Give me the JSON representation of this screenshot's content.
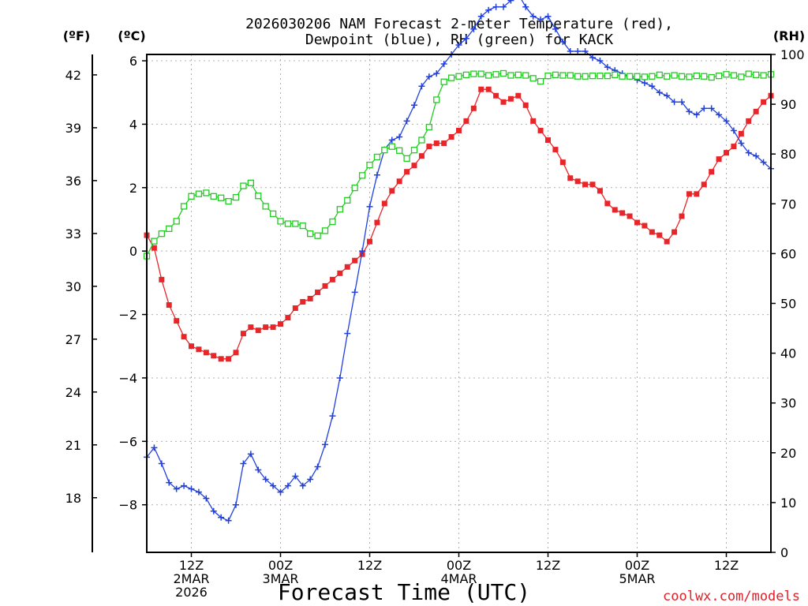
{
  "chart_data": {
    "type": "line",
    "title_line1": "2026030206 NAM Forecast 2-meter Temperature (red),",
    "title_line2": "Dewpoint (blue), RH (green) for KACK",
    "xlabel": "Forecast Time (UTC)",
    "left_unit_f": "(ºF)",
    "left_unit_c": "(ºC)",
    "right_unit": "(RH)",
    "credit": "coolwx.com/models",
    "colors": {
      "temperature": "#e8262a",
      "dewpoint": "#2040e0",
      "rh": "#22cc22"
    },
    "x_unit": "forecast hour from 2026-03-02 06Z",
    "xlim": [
      0,
      84
    ],
    "ylim_c": [
      -9.5,
      6.2
    ],
    "ylim_rh": [
      0,
      100
    ],
    "x_ticks": [
      {
        "hour": 6,
        "lines": [
          "12Z",
          "2MAR",
          "2026"
        ]
      },
      {
        "hour": 18,
        "lines": [
          "00Z",
          "3MAR"
        ]
      },
      {
        "hour": 30,
        "lines": [
          "12Z"
        ]
      },
      {
        "hour": 42,
        "lines": [
          "00Z",
          "4MAR"
        ]
      },
      {
        "hour": 54,
        "lines": [
          "12Z"
        ]
      },
      {
        "hour": 66,
        "lines": [
          "00Z",
          "5MAR"
        ]
      },
      {
        "hour": 78,
        "lines": [
          "12Z"
        ]
      }
    ],
    "y_ticks_c": [
      "6",
      "4",
      "2",
      "0",
      "−2",
      "−4",
      "−6",
      "−8"
    ],
    "y_ticks_c_values": [
      6,
      4,
      2,
      0,
      -2,
      -4,
      -6,
      -8
    ],
    "y_ticks_f": [
      "42",
      "39",
      "36",
      "33",
      "30",
      "27",
      "24",
      "21",
      "18"
    ],
    "y_ticks_f_values": [
      42,
      39,
      36,
      33,
      30,
      27,
      24,
      21,
      18
    ],
    "y_ticks_rh": [
      "100",
      "90",
      "80",
      "70",
      "60",
      "50",
      "40",
      "30",
      "20",
      "10",
      "0"
    ],
    "y_ticks_rh_values": [
      100,
      90,
      80,
      70,
      60,
      50,
      40,
      30,
      20,
      10,
      0
    ],
    "series": [
      {
        "name": "Temperature",
        "unit": "C",
        "marker": "filled-square",
        "x": [
          0,
          1,
          2,
          3,
          4,
          5,
          6,
          7,
          8,
          9,
          10,
          11,
          12,
          13,
          14,
          15,
          16,
          17,
          18,
          19,
          20,
          21,
          22,
          23,
          24,
          25,
          26,
          27,
          28,
          29,
          30,
          31,
          32,
          33,
          34,
          35,
          36,
          37,
          38,
          39,
          40,
          41,
          42,
          43,
          44,
          45,
          46,
          47,
          48,
          49,
          50,
          51,
          52,
          53,
          54,
          55,
          56,
          57,
          58,
          59,
          60,
          61,
          62,
          63,
          64,
          65,
          66,
          67,
          68,
          69,
          70,
          71,
          72,
          73,
          74,
          75,
          76,
          77,
          78,
          79,
          80,
          81,
          82,
          83,
          84
        ],
        "values": [
          0.5,
          0.1,
          -0.9,
          -1.7,
          -2.2,
          -2.7,
          -3.0,
          -3.1,
          -3.2,
          -3.3,
          -3.4,
          -3.4,
          -3.2,
          -2.6,
          -2.4,
          -2.5,
          -2.4,
          -2.4,
          -2.3,
          -2.1,
          -1.8,
          -1.6,
          -1.5,
          -1.3,
          -1.1,
          -0.9,
          -0.7,
          -0.5,
          -0.3,
          -0.1,
          0.3,
          0.9,
          1.5,
          1.9,
          2.2,
          2.5,
          2.7,
          3.0,
          3.3,
          3.4,
          3.4,
          3.6,
          3.8,
          4.1,
          4.5,
          5.1,
          5.1,
          4.9,
          4.7,
          4.8,
          4.9,
          4.6,
          4.1,
          3.8,
          3.5,
          3.2,
          2.8,
          2.3,
          2.2,
          2.1,
          2.1,
          1.9,
          1.5,
          1.3,
          1.2,
          1.1,
          0.9,
          0.8,
          0.6,
          0.5,
          0.3,
          0.6,
          1.1,
          1.8,
          1.8,
          2.1,
          2.5,
          2.9,
          3.1,
          3.3,
          3.7,
          4.1,
          4.4,
          4.7,
          4.9
        ]
      },
      {
        "name": "Dewpoint",
        "unit": "C",
        "marker": "plus",
        "x": [
          0,
          1,
          2,
          3,
          4,
          5,
          6,
          7,
          8,
          9,
          10,
          11,
          12,
          13,
          14,
          15,
          16,
          17,
          18,
          19,
          20,
          21,
          22,
          23,
          24,
          25,
          26,
          27,
          28,
          29,
          30,
          31,
          32,
          33,
          34,
          35,
          36,
          37,
          38,
          39,
          40,
          41,
          42,
          43,
          44,
          45,
          46,
          47,
          48,
          49,
          50,
          51,
          52,
          53,
          54,
          55,
          56,
          57,
          58,
          59,
          60,
          61,
          62,
          63,
          64,
          65,
          66,
          67,
          68,
          69,
          70,
          71,
          72,
          73,
          74,
          75,
          76,
          77,
          78,
          79,
          80,
          81,
          82,
          83,
          84
        ],
        "values": [
          -6.5,
          -6.2,
          -6.7,
          -7.3,
          -7.5,
          -7.4,
          -7.5,
          -7.6,
          -7.8,
          -8.2,
          -8.4,
          -8.5,
          -8.0,
          -6.7,
          -6.4,
          -6.9,
          -7.2,
          -7.4,
          -7.6,
          -7.4,
          -7.1,
          -7.4,
          -7.2,
          -6.8,
          -6.1,
          -5.2,
          -4.0,
          -2.6,
          -1.3,
          0.0,
          1.4,
          2.4,
          3.2,
          3.5,
          3.6,
          4.1,
          4.6,
          5.2,
          5.5,
          5.6,
          5.9,
          6.2,
          6.5,
          6.7,
          7.0,
          7.4,
          7.6,
          7.7,
          7.7,
          7.9,
          8.1,
          7.7,
          7.4,
          7.3,
          7.4,
          7.0,
          6.6,
          6.3,
          6.3,
          6.3,
          6.1,
          6.0,
          5.8,
          5.7,
          5.6,
          5.5,
          5.4,
          5.3,
          5.2,
          5.0,
          4.9,
          4.7,
          4.7,
          4.4,
          4.3,
          4.5,
          4.5,
          4.3,
          4.1,
          3.8,
          3.4,
          3.1,
          3.0,
          2.8,
          2.6
        ]
      },
      {
        "name": "Relative Humidity",
        "unit": "%",
        "marker": "open-square",
        "x": [
          0,
          1,
          2,
          3,
          4,
          5,
          6,
          7,
          8,
          9,
          10,
          11,
          12,
          13,
          14,
          15,
          16,
          17,
          18,
          19,
          20,
          21,
          22,
          23,
          24,
          25,
          26,
          27,
          28,
          29,
          30,
          31,
          32,
          33,
          34,
          35,
          36,
          37,
          38,
          39,
          40,
          41,
          42,
          43,
          44,
          45,
          46,
          47,
          48,
          49,
          50,
          51,
          52,
          53,
          54,
          55,
          56,
          57,
          58,
          59,
          60,
          61,
          62,
          63,
          64,
          65,
          66,
          67,
          68,
          69,
          70,
          71,
          72,
          73,
          74,
          75,
          76,
          77,
          78,
          79,
          80,
          81,
          82,
          83,
          84
        ],
        "values": [
          59.5,
          62.5,
          64,
          65,
          66.5,
          69.5,
          71.5,
          72,
          72.2,
          71.5,
          71.2,
          70.5,
          71.3,
          73.6,
          74.2,
          71.6,
          69.5,
          68,
          66.5,
          66,
          66,
          65.6,
          64,
          63.6,
          64.6,
          66.4,
          68.9,
          70.7,
          73.2,
          75.7,
          77.8,
          79.4,
          80.8,
          81.5,
          80.7,
          79.1,
          80.8,
          82.8,
          85.4,
          90.9,
          94.5,
          95.3,
          95.6,
          95.9,
          96.1,
          96.1,
          95.8,
          96.0,
          96.2,
          95.8,
          95.9,
          95.8,
          95.2,
          94.6,
          95.7,
          95.9,
          95.8,
          95.8,
          95.6,
          95.6,
          95.7,
          95.7,
          95.7,
          95.9,
          95.6,
          95.6,
          95.6,
          95.5,
          95.6,
          95.9,
          95.6,
          95.8,
          95.6,
          95.5,
          95.7,
          95.6,
          95.4,
          95.7,
          96.0,
          95.8,
          95.5,
          96.1,
          95.9,
          95.8,
          96.0
        ]
      }
    ]
  }
}
